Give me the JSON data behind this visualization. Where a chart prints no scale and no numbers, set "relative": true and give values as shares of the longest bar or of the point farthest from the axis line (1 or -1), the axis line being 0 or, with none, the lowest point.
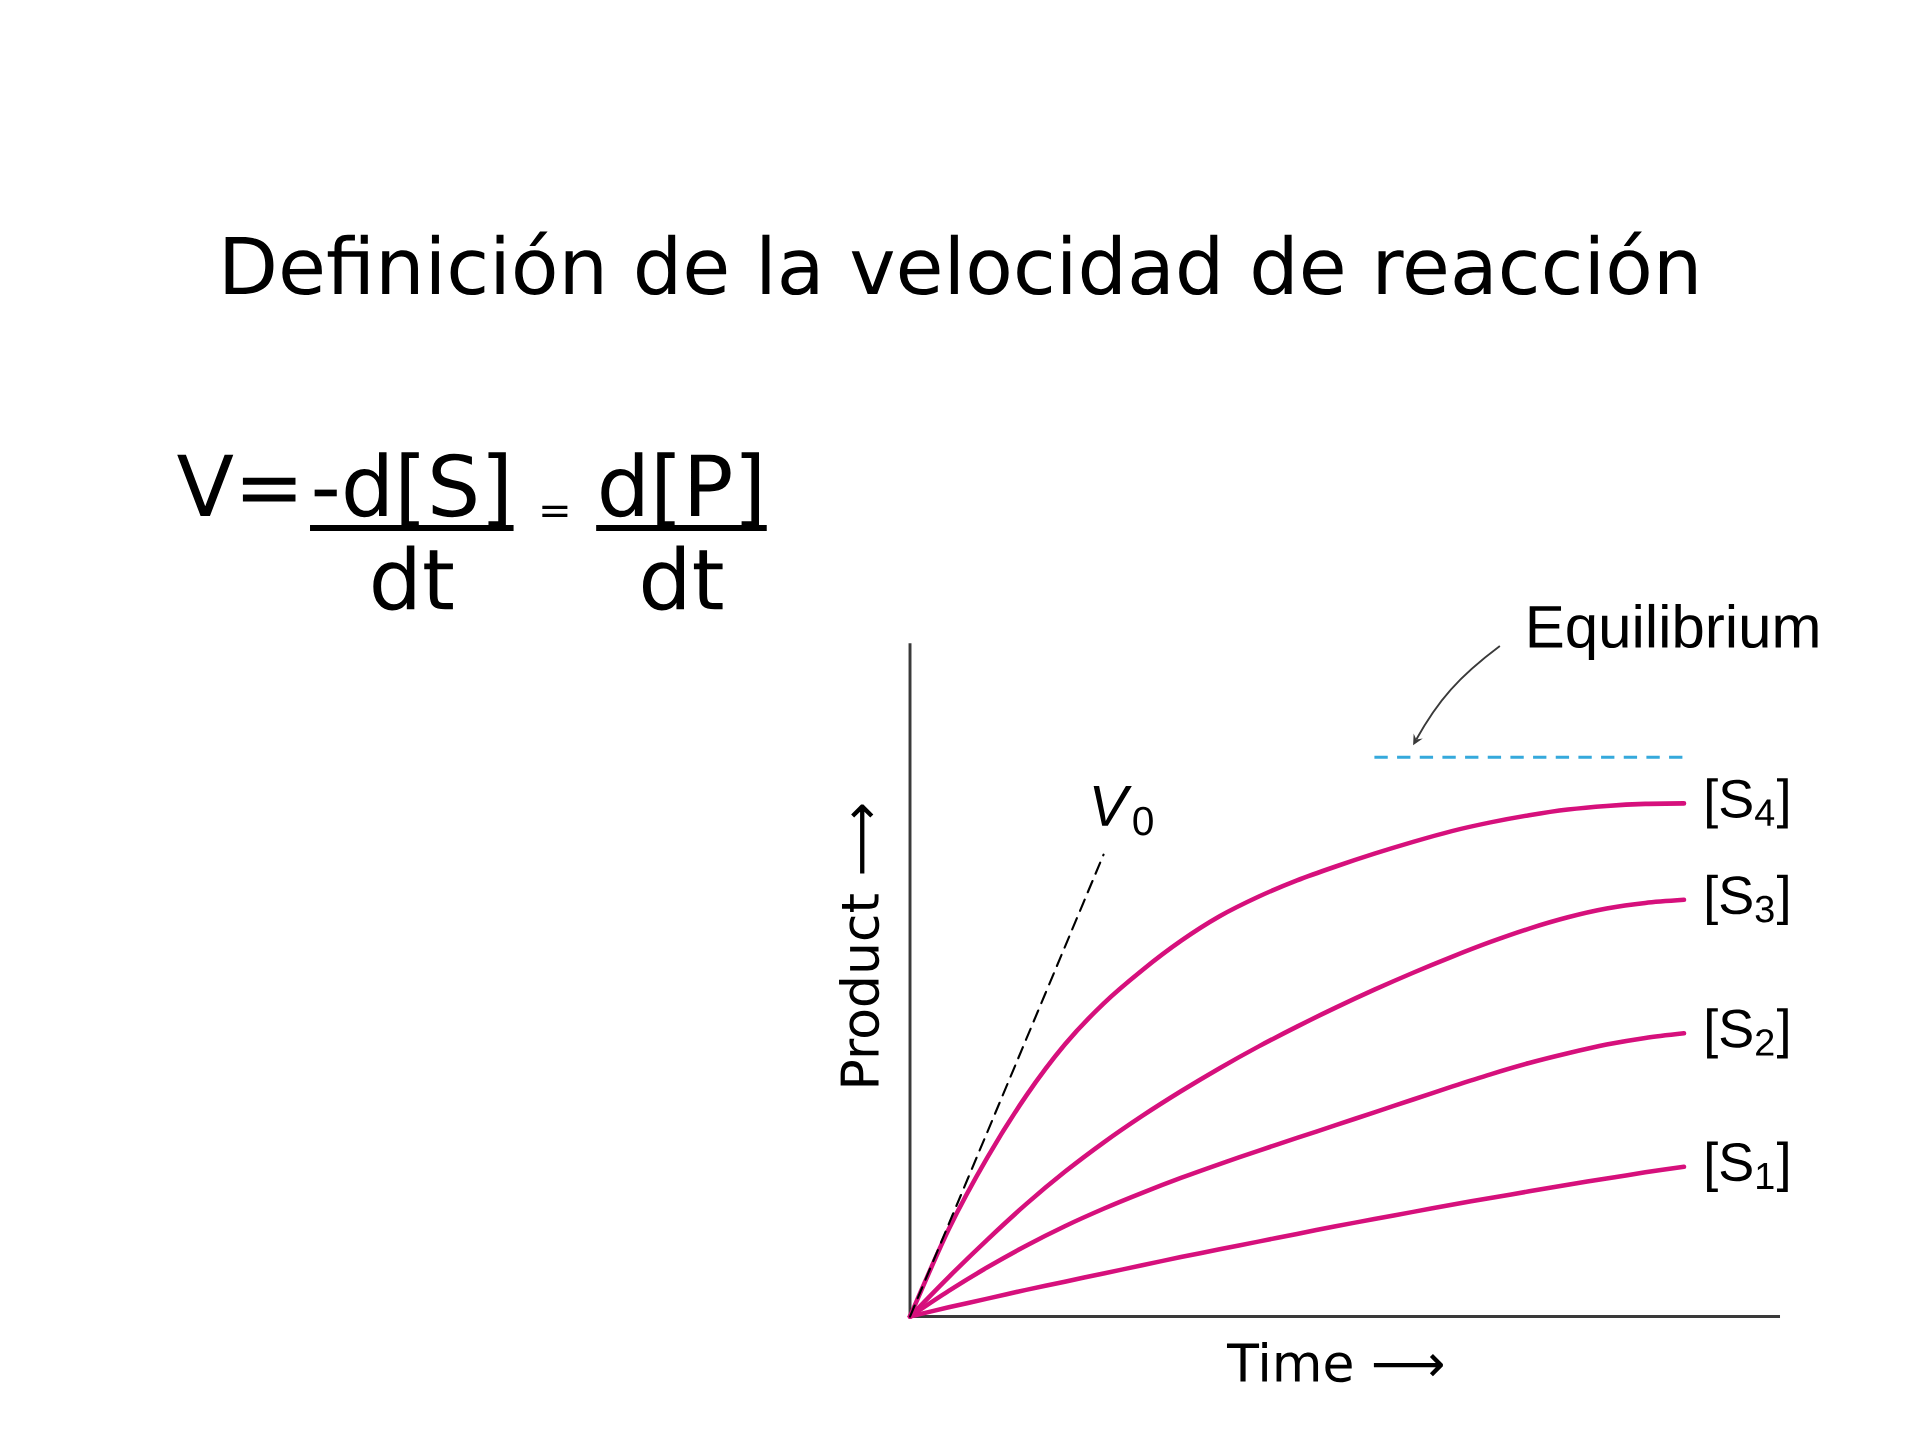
{
  "chart_data": {
    "type": "line",
    "title": "Definición de la velocidad de reacción",
    "annotations": [
      "V=",
      "-d[S]",
      "=",
      "d[P]",
      "dt",
      "dt"
    ],
    "xlabel": "Time ⟶",
    "ylabel": "Product ⟶",
    "relative": true,
    "marker": "none",
    "line_style": "solid",
    "categories": [
      null,
      null,
      null,
      null,
      null,
      null,
      null,
      null,
      null,
      null,
      null,
      null,
      null,
      null,
      null,
      null,
      null,
      null,
      null,
      null,
      null
    ],
    "series": [
      {
        "name": "[S$_{4}$]",
        "color": "#d6107c",
        "values": [
          0,
          0.17,
          0.31,
          0.43,
          0.53,
          0.61,
          0.675,
          0.732,
          0.78,
          0.818,
          0.85,
          0.877,
          0.902,
          0.925,
          0.946,
          0.963,
          0.977,
          0.988,
          0.995,
          0.999,
          1.0
        ]
      },
      {
        "name": "[S$_{3}$]",
        "color": "#d6107c",
        "values": [
          0,
          0.077,
          0.15,
          0.219,
          0.282,
          0.339,
          0.391,
          0.439,
          0.484,
          0.526,
          0.565,
          0.602,
          0.637,
          0.67,
          0.701,
          0.73,
          0.756,
          0.778,
          0.795,
          0.806,
          0.812
        ]
      },
      {
        "name": "[S$_{2}$]",
        "color": "#d6107c",
        "values": [
          0,
          0.05,
          0.096,
          0.138,
          0.176,
          0.21,
          0.241,
          0.27,
          0.297,
          0.323,
          0.348,
          0.373,
          0.398,
          0.423,
          0.448,
          0.472,
          0.494,
          0.513,
          0.53,
          0.543,
          0.552
        ]
      },
      {
        "name": "[S$_{1}$]",
        "color": "#d6107c",
        "values": [
          0,
          0.018,
          0.035,
          0.052,
          0.068,
          0.084,
          0.1,
          0.116,
          0.131,
          0.146,
          0.161,
          0.176,
          0.19,
          0.204,
          0.218,
          0.231,
          0.244,
          0.257,
          0.269,
          0.281,
          0.292
        ]
      },
      {
        "name": "*V*$_{0}$",
        "color": "#000000",
        "line_style": "dashed",
        "values": [
          0,
          0.18,
          0.36,
          0.54,
          0.72,
          0.9,
          null,
          null,
          null,
          null,
          null,
          null,
          null,
          null,
          null,
          null,
          null,
          null,
          null,
          null,
          null
        ]
      }
    ],
    "ref_lines": [
      {
        "axis": "y",
        "value": 1.09,
        "label": "Equilibrium",
        "color": "#35a9dc",
        "line_style": "dashed"
      }
    ]
  }
}
